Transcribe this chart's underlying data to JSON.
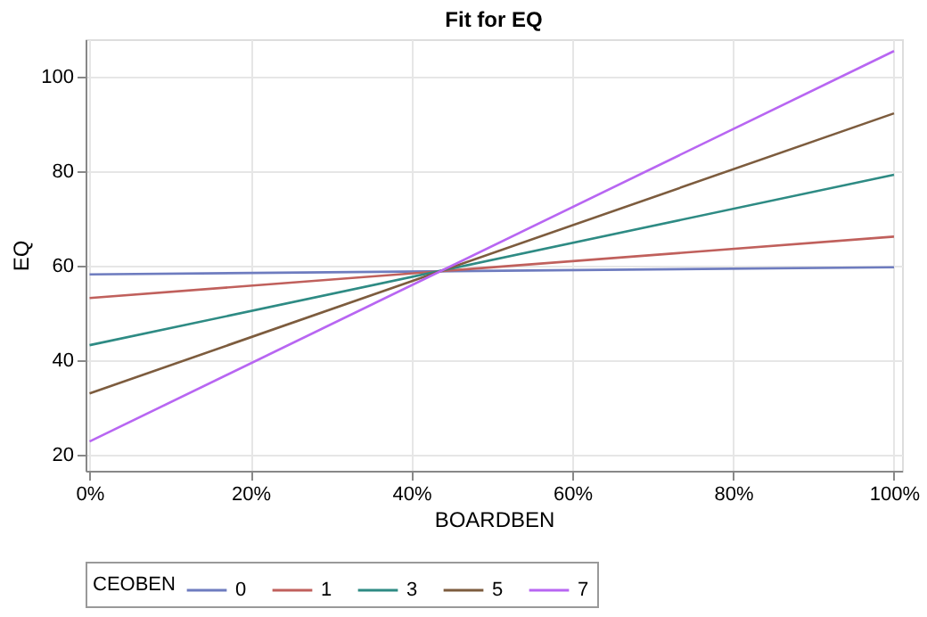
{
  "chart_data": {
    "type": "line",
    "title": "Fit for EQ",
    "xlabel": "BOARDBEN",
    "ylabel": "EQ",
    "legend_title": "CEOBEN",
    "x": [
      0,
      1
    ],
    "series": [
      {
        "name": "0",
        "color": "#6e7cbf",
        "values": [
          58.2,
          59.7
        ]
      },
      {
        "name": "1",
        "color": "#c0605c",
        "values": [
          53.2,
          66.2
        ]
      },
      {
        "name": "3",
        "color": "#2e8b84",
        "values": [
          43.2,
          79.3
        ]
      },
      {
        "name": "5",
        "color": "#7d5c3e",
        "values": [
          33.0,
          92.3
        ]
      },
      {
        "name": "7",
        "color": "#b866f2",
        "values": [
          22.8,
          105.5
        ]
      }
    ],
    "xlim": [
      -0.005,
      1.01
    ],
    "ylim": [
      16.6,
      108
    ],
    "xticks": [
      {
        "value": 0,
        "label": "0%"
      },
      {
        "value": 0.2,
        "label": "20%"
      },
      {
        "value": 0.4,
        "label": "40%"
      },
      {
        "value": 0.6,
        "label": "60%"
      },
      {
        "value": 0.8,
        "label": "80%"
      },
      {
        "value": 1,
        "label": "100%"
      }
    ],
    "yticks": [
      20,
      40,
      60,
      80,
      100
    ],
    "grid": true,
    "legend": "bottom",
    "marker": "none",
    "line_style": "solid"
  }
}
